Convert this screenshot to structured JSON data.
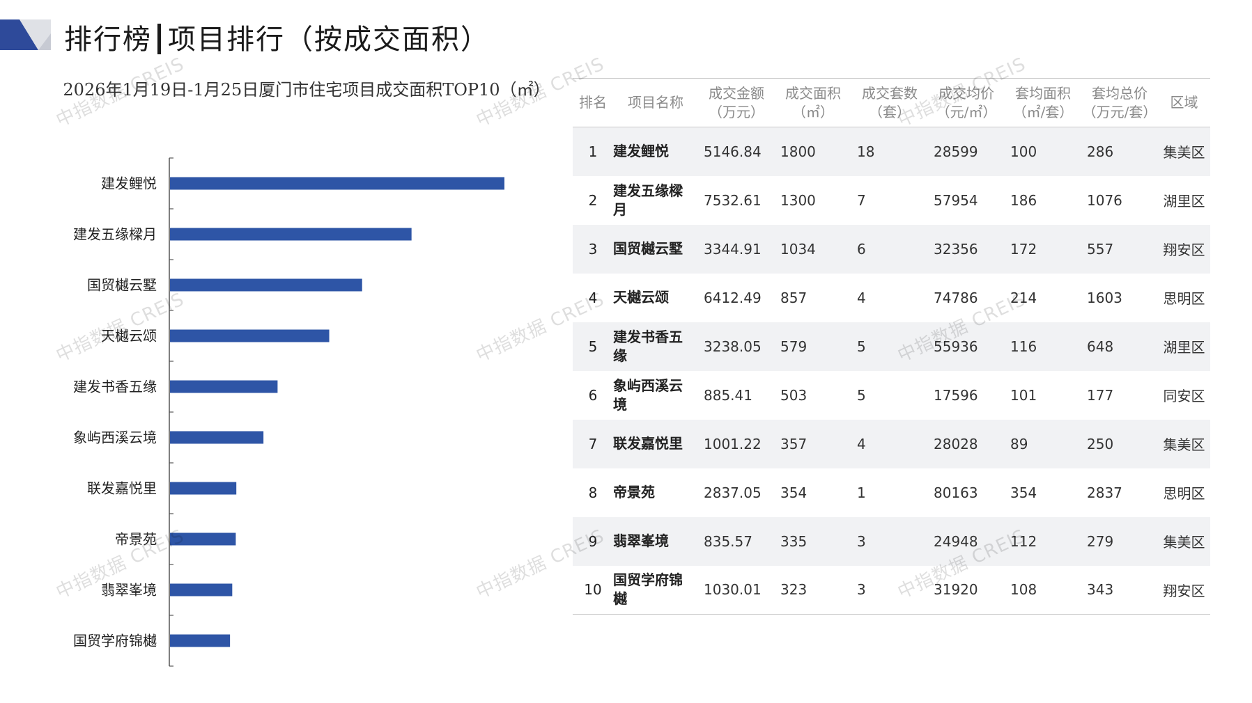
{
  "header": {
    "title_left": "排行榜",
    "title_right": "项目排行（按成交面积）"
  },
  "watermark": "中指数据 CREIS",
  "colors": {
    "bar": "#2e55a6",
    "deco_dark": "#2e4a9a",
    "deco_light": "#c7cad3"
  },
  "chart_data": {
    "type": "bar",
    "orientation": "horizontal",
    "title": "2026年1月19日-1月25日厦门市住宅项目成交面积TOP10（㎡）",
    "categories": [
      "建发鲤悦",
      "建发五缘樑月",
      "国贸樾云墅",
      "天樾云颂",
      "建发书香五缘",
      "象屿西溪云境",
      "联发嘉悦里",
      "帝景苑",
      "翡翠峯境",
      "国贸学府锦樾"
    ],
    "values": [
      1800,
      1300,
      1034,
      857,
      579,
      503,
      357,
      354,
      335,
      323
    ],
    "xlim": [
      0,
      1800
    ],
    "legend": "none",
    "grid": false
  },
  "table": {
    "headers": [
      "排名",
      "项目名称",
      "成交金额\n（万元）",
      "成交面积\n（㎡）",
      "成交套数\n（套）",
      "成交均价\n（元/㎡）",
      "套均面积\n（㎡/套）",
      "套均总价\n（万元/套）",
      "区域"
    ],
    "rows": [
      [
        "1",
        "建发鲤悦",
        "5146.84",
        "1800",
        "18",
        "28599",
        "100",
        "286",
        "集美区"
      ],
      [
        "2",
        "建发五缘樑月",
        "7532.61",
        "1300",
        "7",
        "57954",
        "186",
        "1076",
        "湖里区"
      ],
      [
        "3",
        "国贸樾云墅",
        "3344.91",
        "1034",
        "6",
        "32356",
        "172",
        "557",
        "翔安区"
      ],
      [
        "4",
        "天樾云颂",
        "6412.49",
        "857",
        "4",
        "74786",
        "214",
        "1603",
        "思明区"
      ],
      [
        "5",
        "建发书香五缘",
        "3238.05",
        "579",
        "5",
        "55936",
        "116",
        "648",
        "湖里区"
      ],
      [
        "6",
        "象屿西溪云境",
        "885.41",
        "503",
        "5",
        "17596",
        "101",
        "177",
        "同安区"
      ],
      [
        "7",
        "联发嘉悦里",
        "1001.22",
        "357",
        "4",
        "28028",
        "89",
        "250",
        "集美区"
      ],
      [
        "8",
        "帝景苑",
        "2837.05",
        "354",
        "1",
        "80163",
        "354",
        "2837",
        "思明区"
      ],
      [
        "9",
        "翡翠峯境",
        "835.57",
        "335",
        "3",
        "24948",
        "112",
        "279",
        "集美区"
      ],
      [
        "10",
        "国贸学府锦樾",
        "1030.01",
        "323",
        "3",
        "31920",
        "108",
        "343",
        "翔安区"
      ]
    ]
  }
}
